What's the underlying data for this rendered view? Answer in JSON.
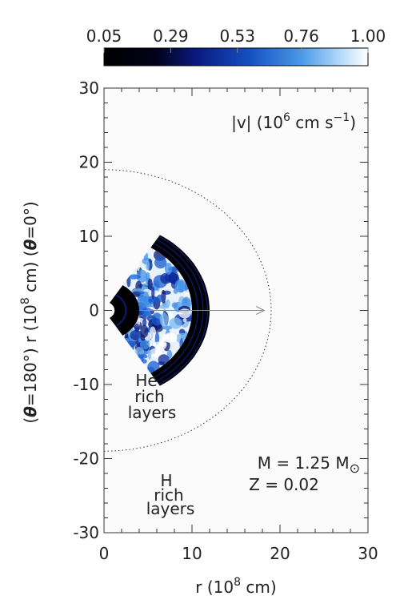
{
  "chart_data": {
    "type": "image",
    "colorbar": {
      "lim": [
        0.05,
        1
      ],
      "ticks": [
        {
          "value": 0.05,
          "label": "0.05"
        },
        0.29,
        0.53,
        0.76,
        {
          "value": 1,
          "label": "1.00"
        }
      ]
    },
    "annotation": [
      "|v| (10",
      "6",
      " cm s",
      "−1",
      ")"
    ],
    "xlabel": [
      "r (10",
      "8",
      " cm)"
    ],
    "ylabel": [
      "(",
      "θ",
      "=180°) r (10",
      "8",
      " cm) (",
      "θ",
      "=0°)"
    ],
    "xlim": [
      0,
      30
    ],
    "ylim": [
      -30,
      30
    ],
    "xticks": [
      0,
      10,
      20,
      30
    ],
    "yticks": [
      -30,
      -20,
      -10,
      0,
      10,
      20,
      30
    ],
    "he_label": [
      "He",
      "rich",
      "layers"
    ],
    "h_label": [
      "H",
      "rich",
      "layers"
    ],
    "mass_label": [
      "M = 1.25 M",
      "⊙"
    ],
    "z_label": "Z = 0.02"
  }
}
